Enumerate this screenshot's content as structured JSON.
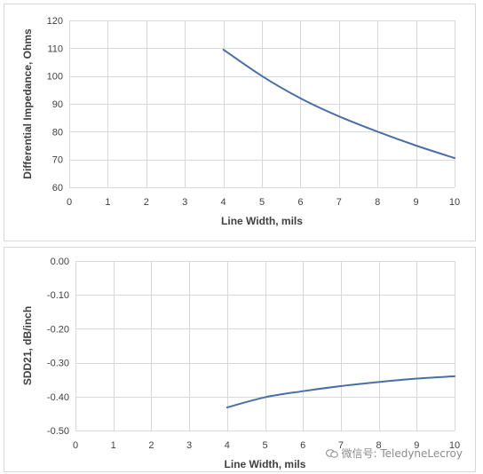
{
  "chart_data": [
    {
      "type": "line",
      "title": "",
      "xlabel": "Line Width, mils",
      "ylabel": "Differential Impedance, Ohms",
      "xlim": [
        0,
        10
      ],
      "ylim": [
        60,
        120
      ],
      "xticks": [
        0,
        1,
        2,
        3,
        4,
        5,
        6,
        7,
        8,
        9,
        10
      ],
      "yticks": [
        60,
        70,
        80,
        90,
        100,
        110,
        120
      ],
      "ytick_labels": [
        "60",
        "70",
        "80",
        "90",
        "100",
        "110",
        "120"
      ],
      "grid": true,
      "series": [
        {
          "color": "#4a6fa5",
          "x": [
            4,
            5,
            6,
            7,
            8,
            9,
            10
          ],
          "y": [
            109.5,
            100,
            92,
            85.5,
            80,
            75,
            70.5
          ]
        }
      ]
    },
    {
      "type": "line",
      "title": "",
      "xlabel": "Line Width, mils",
      "ylabel": "SDD21, dB/inch",
      "xlim": [
        0,
        10
      ],
      "ylim": [
        -0.5,
        0
      ],
      "xticks": [
        0,
        1,
        2,
        3,
        4,
        5,
        6,
        7,
        8,
        9,
        10
      ],
      "yticks": [
        -0.5,
        -0.4,
        -0.3,
        -0.2,
        -0.1,
        0
      ],
      "ytick_labels": [
        "-0.50",
        "-0.40",
        "-0.30",
        "-0.20",
        "-0.10",
        "0.00"
      ],
      "grid": true,
      "series": [
        {
          "color": "#4a6fa5",
          "x": [
            4,
            5,
            6,
            7,
            8,
            9,
            10
          ],
          "y": [
            -0.432,
            -0.402,
            -0.384,
            -0.369,
            -0.357,
            -0.347,
            -0.34
          ]
        }
      ]
    }
  ],
  "watermark": {
    "text": "微信号: TeledyneLecroy",
    "icon": "wechat-icon"
  }
}
